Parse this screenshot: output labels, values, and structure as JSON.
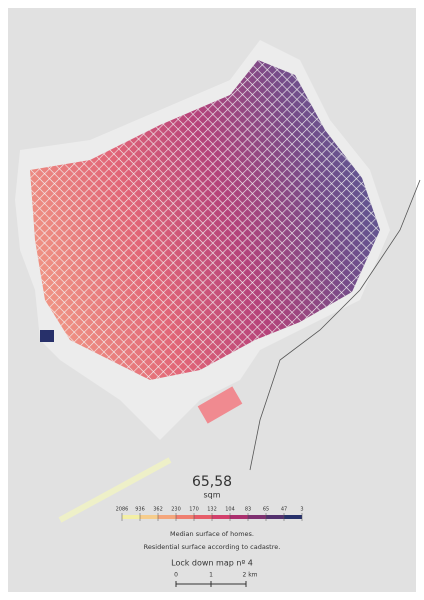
{
  "headline": {
    "value": "65,58",
    "unit": "sqm"
  },
  "legend": {
    "labels": [
      2086,
      936,
      362,
      230,
      170,
      132,
      104,
      83,
      65,
      47,
      3
    ],
    "colors": [
      "#f3efa6",
      "#f6cd8c",
      "#f4a67c",
      "#ef7f70",
      "#e65d69",
      "#d33f6b",
      "#ab2f6e",
      "#7e3070",
      "#52306d",
      "#27306a"
    ]
  },
  "caption": [
    "Median surface of homes.",
    "Residential surface according to cadastre."
  ],
  "title": "Lock down map nº 4",
  "scale_bar": {
    "labels": [
      "0",
      "1",
      "2 km"
    ]
  }
}
